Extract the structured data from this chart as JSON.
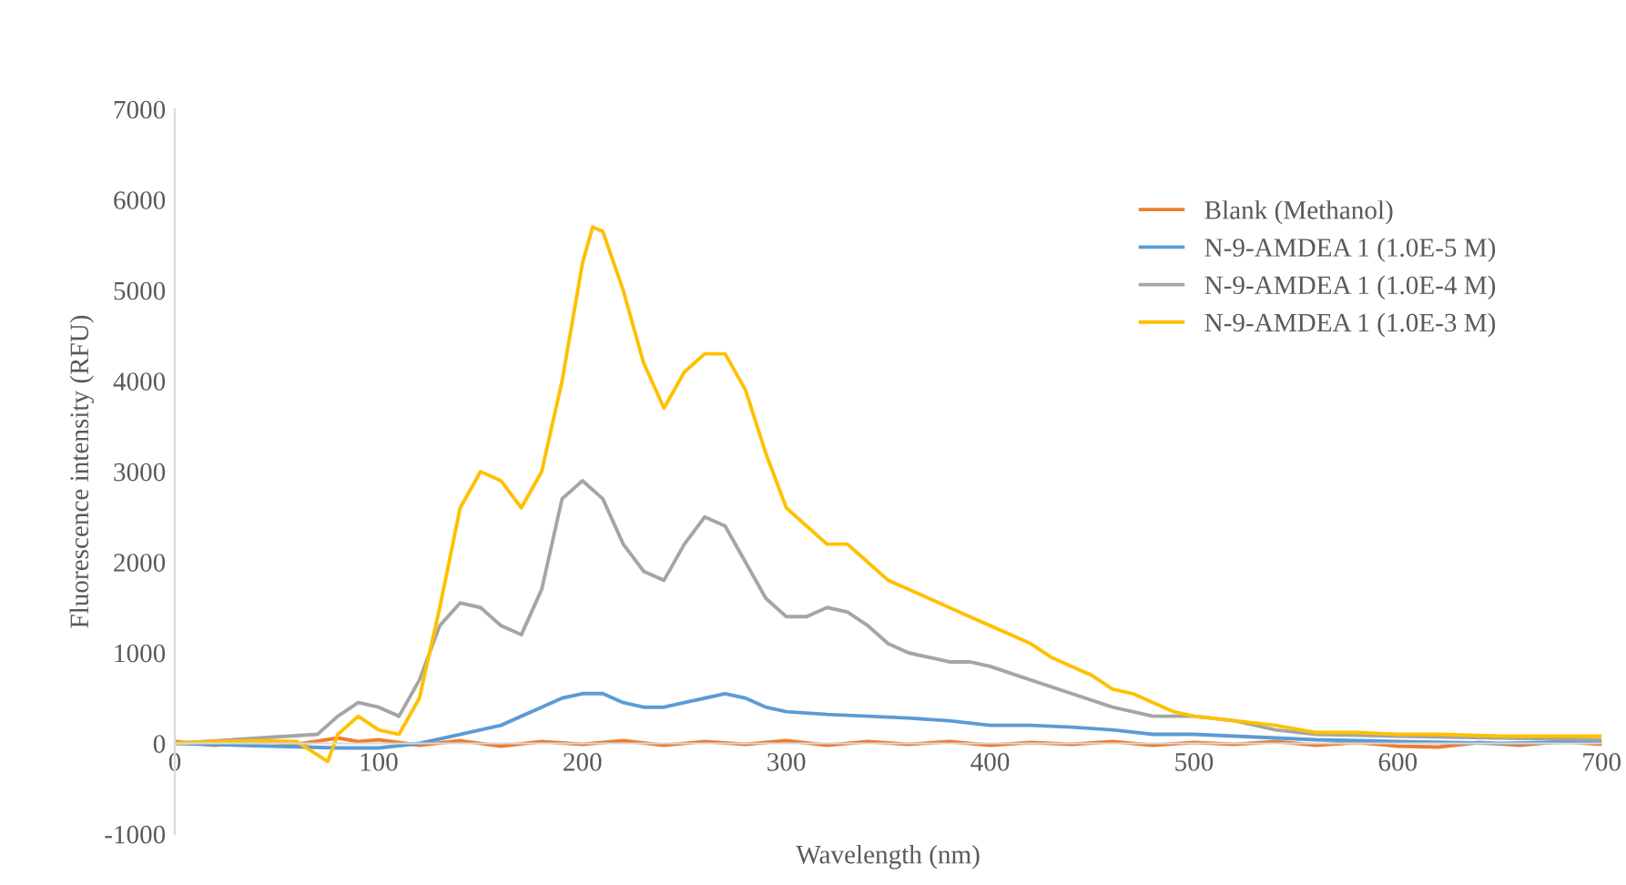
{
  "chart_data": {
    "type": "line",
    "xlabel": "Wavelength (nm)",
    "ylabel": "Fluorescence intensity (RFU)",
    "xlim": [
      0,
      700
    ],
    "xticks": [
      0,
      100,
      200,
      300,
      400,
      500,
      600,
      700
    ],
    "ylim": [
      -1000,
      7000
    ],
    "yticks": [
      -1000,
      0,
      1000,
      2000,
      3000,
      4000,
      5000,
      6000,
      7000
    ],
    "grid": false,
    "legend": "right",
    "marker": "none",
    "line_style": "solid",
    "series": [
      {
        "name": "Blank (Methanol)",
        "color": "#ed7d31",
        "x": [
          0,
          20,
          40,
          60,
          80,
          90,
          100,
          120,
          140,
          160,
          180,
          200,
          220,
          240,
          260,
          280,
          300,
          320,
          340,
          360,
          380,
          400,
          420,
          440,
          460,
          480,
          500,
          520,
          540,
          560,
          580,
          600,
          620,
          640,
          660,
          680,
          700
        ],
        "values": [
          20,
          -20,
          30,
          -10,
          60,
          20,
          40,
          -20,
          30,
          -30,
          20,
          -10,
          30,
          -20,
          20,
          -10,
          30,
          -20,
          20,
          -10,
          20,
          -20,
          10,
          -10,
          20,
          -20,
          10,
          -10,
          20,
          -20,
          10,
          -30,
          -40,
          10,
          -20,
          20,
          -10
        ]
      },
      {
        "name": "N-9-AMDEA 1 (1.0E-5 M)",
        "color": "#5b9bd5",
        "x": [
          0,
          80,
          100,
          120,
          140,
          160,
          170,
          180,
          190,
          200,
          210,
          220,
          230,
          240,
          250,
          260,
          270,
          280,
          290,
          300,
          320,
          340,
          360,
          380,
          400,
          420,
          440,
          460,
          480,
          500,
          520,
          540,
          560,
          600,
          650,
          700
        ],
        "values": [
          0,
          -50,
          -50,
          0,
          100,
          200,
          300,
          400,
          500,
          550,
          550,
          450,
          400,
          400,
          450,
          500,
          550,
          500,
          400,
          350,
          320,
          300,
          280,
          250,
          200,
          200,
          180,
          150,
          100,
          100,
          80,
          60,
          40,
          20,
          0,
          20
        ]
      },
      {
        "name": "N-9-AMDEA 1 (1.0E-4 M)",
        "color": "#a5a5a5",
        "x": [
          0,
          70,
          80,
          90,
          100,
          110,
          120,
          130,
          140,
          150,
          160,
          170,
          180,
          190,
          200,
          210,
          220,
          230,
          240,
          250,
          260,
          270,
          280,
          290,
          300,
          310,
          320,
          330,
          340,
          350,
          360,
          370,
          380,
          390,
          400,
          420,
          440,
          460,
          480,
          500,
          520,
          540,
          560,
          600,
          650,
          700
        ],
        "values": [
          0,
          100,
          300,
          450,
          400,
          300,
          700,
          1300,
          1550,
          1500,
          1300,
          1200,
          1700,
          2700,
          2900,
          2700,
          2200,
          1900,
          1800,
          2200,
          2500,
          2400,
          2000,
          1600,
          1400,
          1400,
          1500,
          1450,
          1300,
          1100,
          1000,
          950,
          900,
          900,
          850,
          700,
          550,
          400,
          300,
          300,
          250,
          150,
          100,
          80,
          60,
          40
        ]
      },
      {
        "name": "N-9-AMDEA 1 (1.0E-3 M)",
        "color": "#ffc000",
        "x": [
          0,
          20,
          40,
          60,
          75,
          80,
          90,
          100,
          110,
          120,
          130,
          140,
          150,
          160,
          170,
          180,
          190,
          200,
          205,
          210,
          220,
          230,
          240,
          250,
          260,
          270,
          280,
          290,
          300,
          310,
          320,
          330,
          340,
          350,
          360,
          370,
          380,
          390,
          400,
          410,
          420,
          430,
          440,
          450,
          460,
          470,
          480,
          490,
          500,
          520,
          540,
          560,
          580,
          600,
          620,
          650,
          680,
          700
        ],
        "values": [
          0,
          20,
          30,
          20,
          -200,
          100,
          300,
          150,
          100,
          500,
          1500,
          2600,
          3000,
          2900,
          2600,
          3000,
          4000,
          5300,
          5700,
          5650,
          5000,
          4200,
          3700,
          4100,
          4300,
          4300,
          3900,
          3200,
          2600,
          2400,
          2200,
          2200,
          2000,
          1800,
          1700,
          1600,
          1500,
          1400,
          1300,
          1200,
          1100,
          950,
          850,
          750,
          600,
          550,
          450,
          350,
          300,
          250,
          200,
          120,
          120,
          100,
          100,
          80,
          80,
          80
        ]
      }
    ]
  }
}
